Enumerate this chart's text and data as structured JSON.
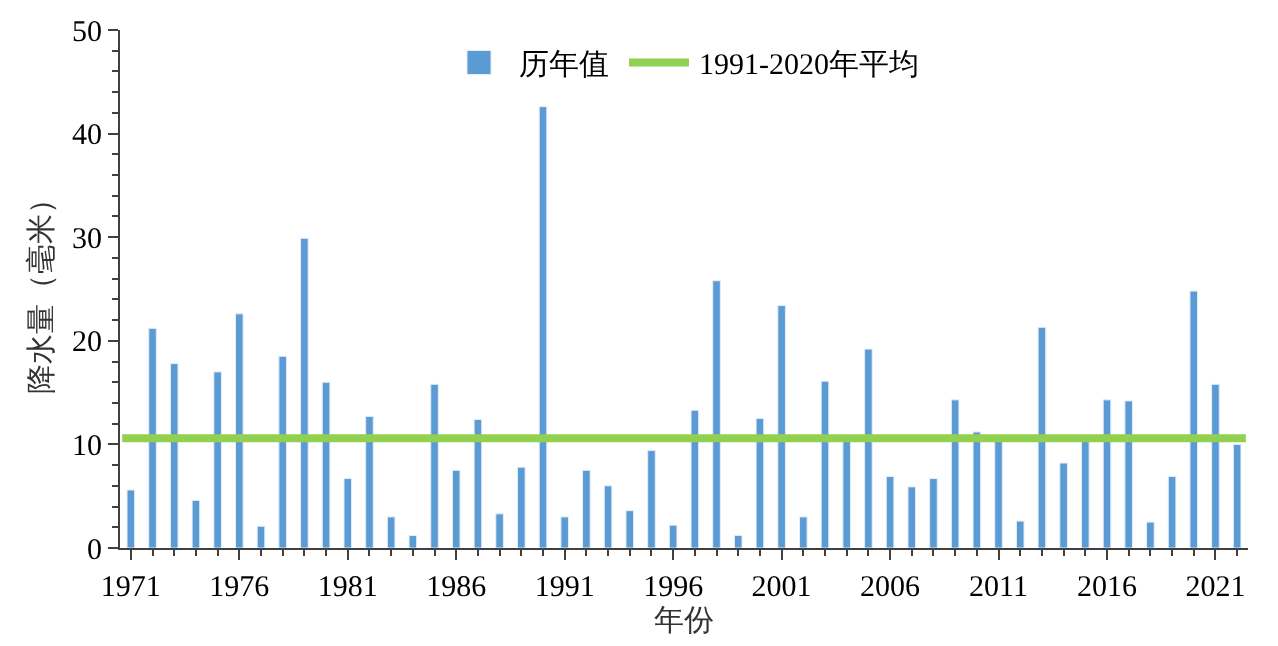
{
  "chart_data": {
    "type": "bar",
    "xlabel": "年份",
    "ylabel": "降水量（毫米）",
    "x": [
      1971,
      1972,
      1973,
      1974,
      1975,
      1976,
      1977,
      1978,
      1979,
      1980,
      1981,
      1982,
      1983,
      1984,
      1985,
      1986,
      1987,
      1988,
      1989,
      1990,
      1991,
      1992,
      1993,
      1994,
      1995,
      1996,
      1997,
      1998,
      1999,
      2000,
      2001,
      2002,
      2003,
      2004,
      2005,
      2006,
      2007,
      2008,
      2009,
      2010,
      2011,
      2012,
      2013,
      2014,
      2015,
      2016,
      2017,
      2018,
      2019,
      2020,
      2021,
      2022
    ],
    "series": [
      {
        "name": "历年值",
        "color": "#5b9bd5",
        "values": [
          5.6,
          21.2,
          17.8,
          4.6,
          17.0,
          22.6,
          2.1,
          18.5,
          29.9,
          16.0,
          6.7,
          12.7,
          3.0,
          1.2,
          15.8,
          7.5,
          12.4,
          3.3,
          7.8,
          42.6,
          3.0,
          7.5,
          6.0,
          3.6,
          9.4,
          2.2,
          13.3,
          25.8,
          1.2,
          12.5,
          23.4,
          3.0,
          16.1,
          10.3,
          19.2,
          6.9,
          5.9,
          6.7,
          14.3,
          11.2,
          10.3,
          2.6,
          21.3,
          8.2,
          10.3,
          14.3,
          14.2,
          2.5,
          6.9,
          24.8,
          15.8,
          10.0
        ]
      },
      {
        "name": "1991-2020年平均",
        "type": "line",
        "color": "#92d050",
        "x": [
          1970.6,
          2022.4
        ],
        "values": [
          10.6,
          10.6
        ]
      }
    ],
    "xlim": [
      1970.5,
      2022.5
    ],
    "xticks": [
      1971,
      1976,
      1981,
      1986,
      1991,
      1996,
      2001,
      2006,
      2011,
      2016,
      2021
    ],
    "ylim": [
      0,
      50
    ],
    "yticks": [
      0,
      10,
      20,
      30,
      40,
      50
    ],
    "legend": "top",
    "marker": "none",
    "line_style": "solid"
  }
}
